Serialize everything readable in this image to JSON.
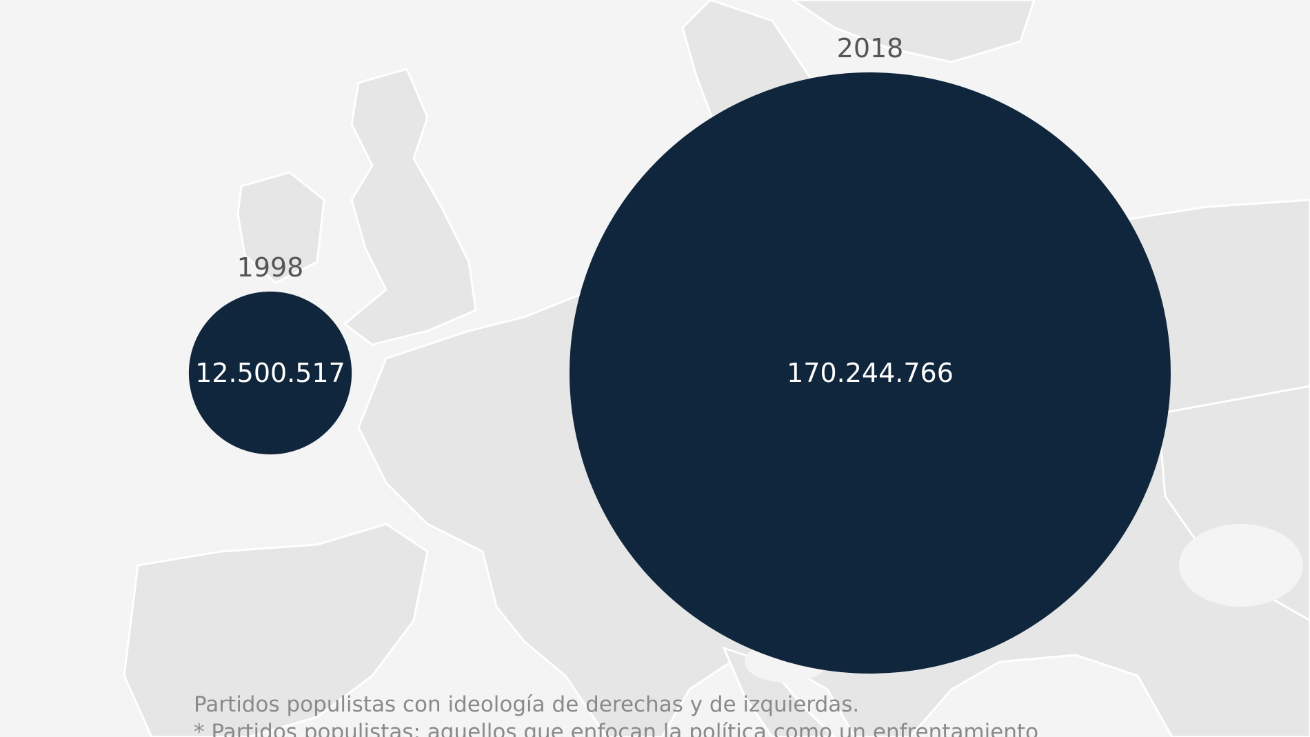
{
  "header": {
    "subtitle": ""
  },
  "chart_data": {
    "type": "bubble",
    "title": "",
    "categories": [
      "1998",
      "2018"
    ],
    "values": [
      12500517,
      170244766
    ],
    "value_labels": [
      "12.500.517",
      "170.244.766"
    ],
    "bubble_color": "#10263c",
    "label_color": "#ffffff",
    "year_label_color": "#555555",
    "background": "map-of-europe"
  },
  "footer": {
    "note_line1": "Partidos populistas con ideología de derechas y de izquierdas.",
    "note_line2": "* Partidos populistas: aquellos que enfocan la política como un enfrentamiento"
  },
  "colors": {
    "background": "#f4f4f4",
    "land": "#e6e6e6",
    "borders": "#ffffff"
  }
}
